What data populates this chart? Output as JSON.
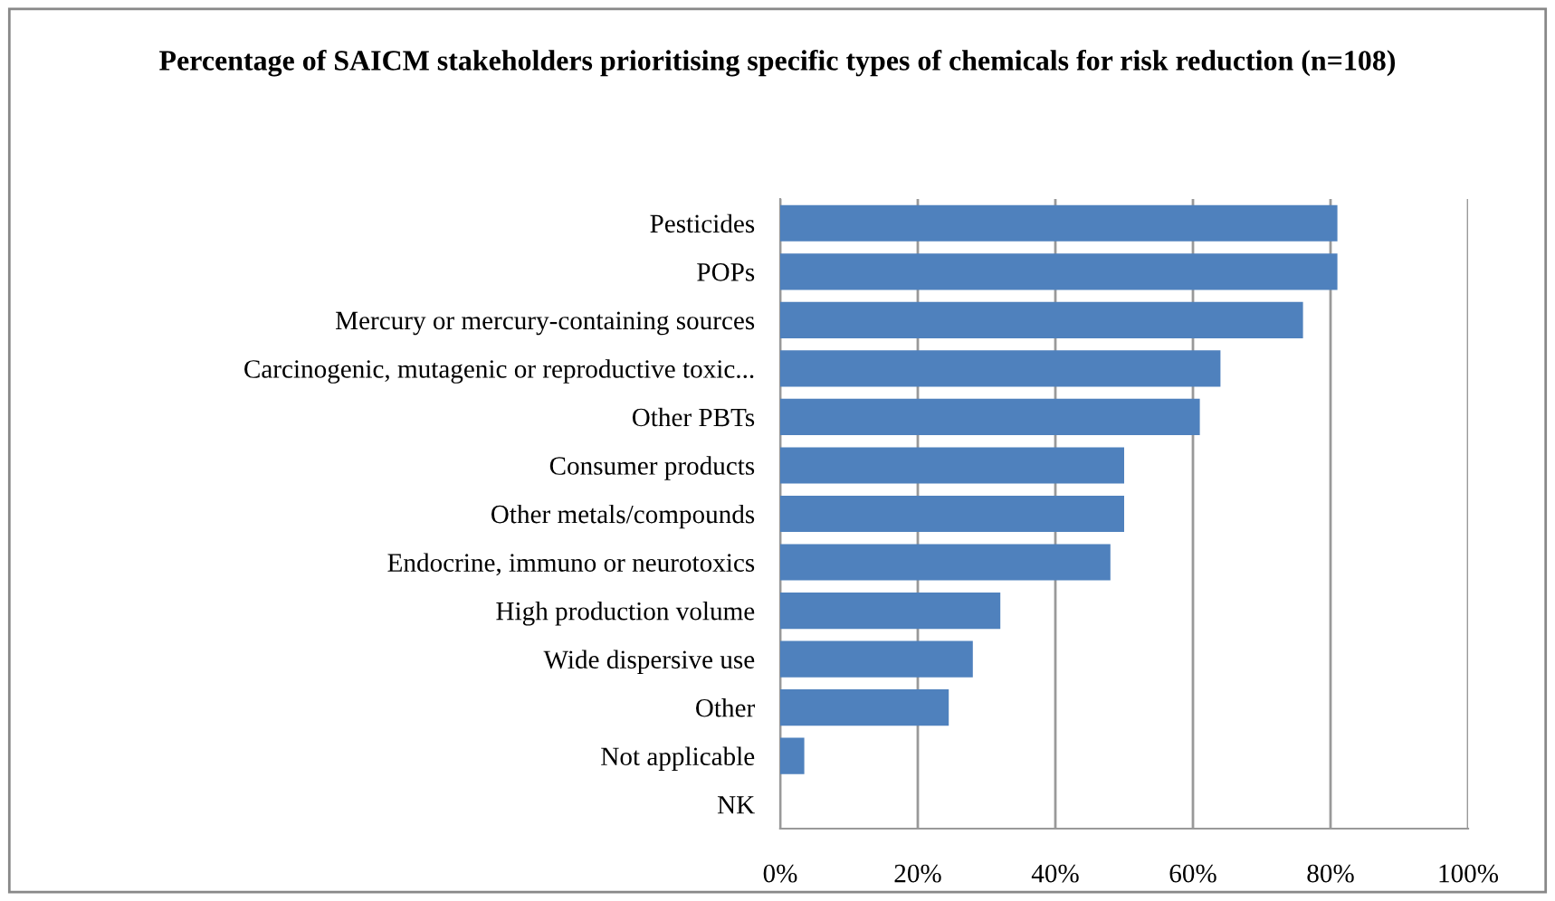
{
  "chart_data": {
    "type": "bar",
    "orientation": "horizontal",
    "title": "Percentage of SAICM stakeholders prioritising specific types of chemicals for risk reduction (n=108)",
    "categories": [
      "Pesticides",
      "POPs",
      "Mercury or mercury-containing sources",
      "Carcinogenic, mutagenic or reproductive toxic...",
      "Other PBTs",
      "Consumer products",
      "Other metals/compounds",
      "Endocrine, immuno or neurotoxics",
      "High production volume",
      "Wide dispersive use",
      "Other",
      "Not applicable",
      "NK"
    ],
    "values": [
      81,
      81,
      76,
      64,
      61,
      50,
      50,
      48,
      32,
      28,
      24.5,
      3.5,
      0
    ],
    "color": "#4f81bd",
    "xlim": [
      0,
      100
    ],
    "xticks": [
      {
        "value": 0,
        "label": "0%"
      },
      {
        "value": 20,
        "label": "20%"
      },
      {
        "value": 40,
        "label": "40%"
      },
      {
        "value": 60,
        "label": "60%"
      },
      {
        "value": 80,
        "label": "80%"
      },
      {
        "value": 100,
        "label": "100%"
      }
    ],
    "grid": "x",
    "legend": false
  }
}
